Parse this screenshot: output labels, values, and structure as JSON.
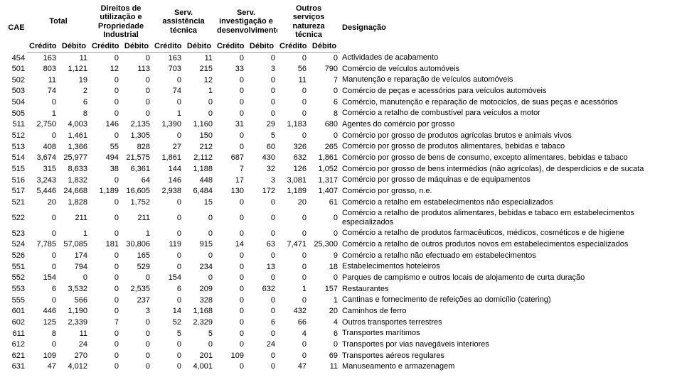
{
  "headerGroups": [
    {
      "label": "CAE",
      "colspan": 1,
      "rowspan": 2
    },
    {
      "label": "Total",
      "colspan": 2,
      "rowspan": 1
    },
    {
      "label": "Direitos de utilização e Propriedade Industrial",
      "colspan": 2,
      "rowspan": 1
    },
    {
      "label": "Serv. assistência técnica",
      "colspan": 2,
      "rowspan": 1
    },
    {
      "label": "Serv. investigação e desenvolvimento",
      "colspan": 2,
      "rowspan": 1
    },
    {
      "label": "Outros serviços natureza técnica",
      "colspan": 2,
      "rowspan": 1
    },
    {
      "label": "Designação",
      "colspan": 1,
      "rowspan": 2
    }
  ],
  "subHeaders": [
    "Crédito",
    "Débito",
    "Crédito",
    "Débito",
    "Crédito",
    "Débito",
    "Crédito",
    "Débito",
    "Crédito",
    "Débito"
  ],
  "rows": [
    [
      "454",
      "163",
      "11",
      "0",
      "0",
      "163",
      "11",
      "0",
      "0",
      "0",
      "0",
      "Actividades de acabamento"
    ],
    [
      "501",
      "803",
      "1,121",
      "12",
      "113",
      "703",
      "215",
      "33",
      "3",
      "56",
      "790",
      "Comércio de veículos automóveis"
    ],
    [
      "502",
      "11",
      "19",
      "0",
      "0",
      "0",
      "12",
      "0",
      "0",
      "11",
      "7",
      "Manutenção e reparação de veículos automóveis"
    ],
    [
      "503",
      "74",
      "2",
      "0",
      "0",
      "74",
      "1",
      "0",
      "0",
      "0",
      "0",
      "Comércio de peças e acessórios para veículos automóveis"
    ],
    [
      "504",
      "0",
      "6",
      "0",
      "0",
      "0",
      "0",
      "0",
      "0",
      "0",
      "6",
      "Comércio, manutenção e reparação de motociclos, de suas peças e acessórios"
    ],
    [
      "505",
      "1",
      "8",
      "0",
      "0",
      "1",
      "0",
      "0",
      "0",
      "0",
      "8",
      "Comércio a retalho de combustível para veículos a motor"
    ],
    [
      "511",
      "2,750",
      "4,003",
      "146",
      "2,135",
      "1,390",
      "1,160",
      "31",
      "29",
      "1,183",
      "680",
      "Agentes do comércio por grosso"
    ],
    [
      "512",
      "0",
      "1,461",
      "0",
      "1,305",
      "0",
      "150",
      "0",
      "5",
      "0",
      "0",
      "Comércio por grosso de produtos agrícolas brutos e animais vivos"
    ],
    [
      "513",
      "408",
      "1,366",
      "55",
      "828",
      "27",
      "212",
      "0",
      "60",
      "326",
      "265",
      "Comércio por grosso de produtos alimentares, bebidas e tabaco"
    ],
    [
      "514",
      "3,674",
      "25,977",
      "494",
      "21,575",
      "1,861",
      "2,112",
      "687",
      "430",
      "632",
      "1,861",
      "Comércio por grosso de bens de consumo, excepto alimentares, bebidas e tabaco"
    ],
    [
      "515",
      "315",
      "8,633",
      "38",
      "6,361",
      "144",
      "1,188",
      "7",
      "32",
      "126",
      "1,052",
      "Comércio por grosso de bens intermédios (não agrícolas), de desperdícios e de sucata"
    ],
    [
      "516",
      "3,243",
      "1,832",
      "0",
      "64",
      "146",
      "448",
      "17",
      "3",
      "3,081",
      "1,317",
      "Comércio por grosso de máquinas e de equipamentos"
    ],
    [
      "517",
      "5,446",
      "24,668",
      "1,189",
      "16,605",
      "2,938",
      "6,484",
      "130",
      "172",
      "1,189",
      "1,407",
      "Comércio por grosso, n.e."
    ],
    [
      "521",
      "20",
      "1,828",
      "0",
      "1,752",
      "0",
      "15",
      "0",
      "0",
      "20",
      "61",
      "Comércio a retalho em estabelecimentos não especializados"
    ],
    [
      "522",
      "0",
      "211",
      "0",
      "211",
      "0",
      "0",
      "0",
      "0",
      "0",
      "0",
      "Comércio a retalho de produtos alimentares, bebidas e tabaco em estabelecimentos especializados"
    ],
    [
      "523",
      "0",
      "1",
      "0",
      "1",
      "0",
      "0",
      "0",
      "0",
      "0",
      "0",
      "Comércio a retalho de produtos farmacêuticos, médicos, cosméticos e de higiene"
    ],
    [
      "524",
      "7,785",
      "57,085",
      "181",
      "30,806",
      "119",
      "915",
      "14",
      "63",
      "7,471",
      "25,300",
      "Comércio a retalho de outros produtos novos em estabelecimentos especializados"
    ],
    [
      "526",
      "0",
      "174",
      "0",
      "165",
      "0",
      "0",
      "0",
      "0",
      "0",
      "9",
      "Comércio a retalho não efectuado em estabelecimentos"
    ],
    [
      "551",
      "0",
      "794",
      "0",
      "529",
      "0",
      "234",
      "0",
      "13",
      "0",
      "18",
      "Estabelecimentos hoteleiros"
    ],
    [
      "552",
      "154",
      "0",
      "0",
      "0",
      "154",
      "0",
      "0",
      "0",
      "0",
      "0",
      "Parques de campismo e outros locais de alojamento de curta duração"
    ],
    [
      "553",
      "6",
      "3,532",
      "0",
      "2,535",
      "6",
      "209",
      "0",
      "632",
      "1",
      "157",
      "Restaurantes"
    ],
    [
      "555",
      "0",
      "566",
      "0",
      "237",
      "0",
      "328",
      "0",
      "0",
      "0",
      "1",
      "Cantinas e fornecimento de refeições ao domicílio (catering)"
    ],
    [
      "601",
      "446",
      "1,190",
      "0",
      "3",
      "14",
      "1,168",
      "0",
      "0",
      "432",
      "20",
      "Caminhos de ferro"
    ],
    [
      "602",
      "125",
      "2,339",
      "7",
      "0",
      "52",
      "2,329",
      "0",
      "6",
      "66",
      "4",
      "Outros transportes terrestres"
    ],
    [
      "611",
      "8",
      "11",
      "0",
      "0",
      "5",
      "5",
      "0",
      "0",
      "4",
      "6",
      "Transportes marítimos"
    ],
    [
      "612",
      "0",
      "24",
      "0",
      "0",
      "0",
      "0",
      "0",
      "24",
      "0",
      "0",
      "Transportes por vias navegáveis interiores"
    ],
    [
      "621",
      "109",
      "270",
      "0",
      "0",
      "0",
      "201",
      "109",
      "0",
      "0",
      "69",
      "Transportes aéreos regulares"
    ],
    [
      "631",
      "47",
      "4,012",
      "0",
      "0",
      "0",
      "4,001",
      "0",
      "0",
      "47",
      "11",
      "Manuseamento e armazenagem"
    ]
  ]
}
